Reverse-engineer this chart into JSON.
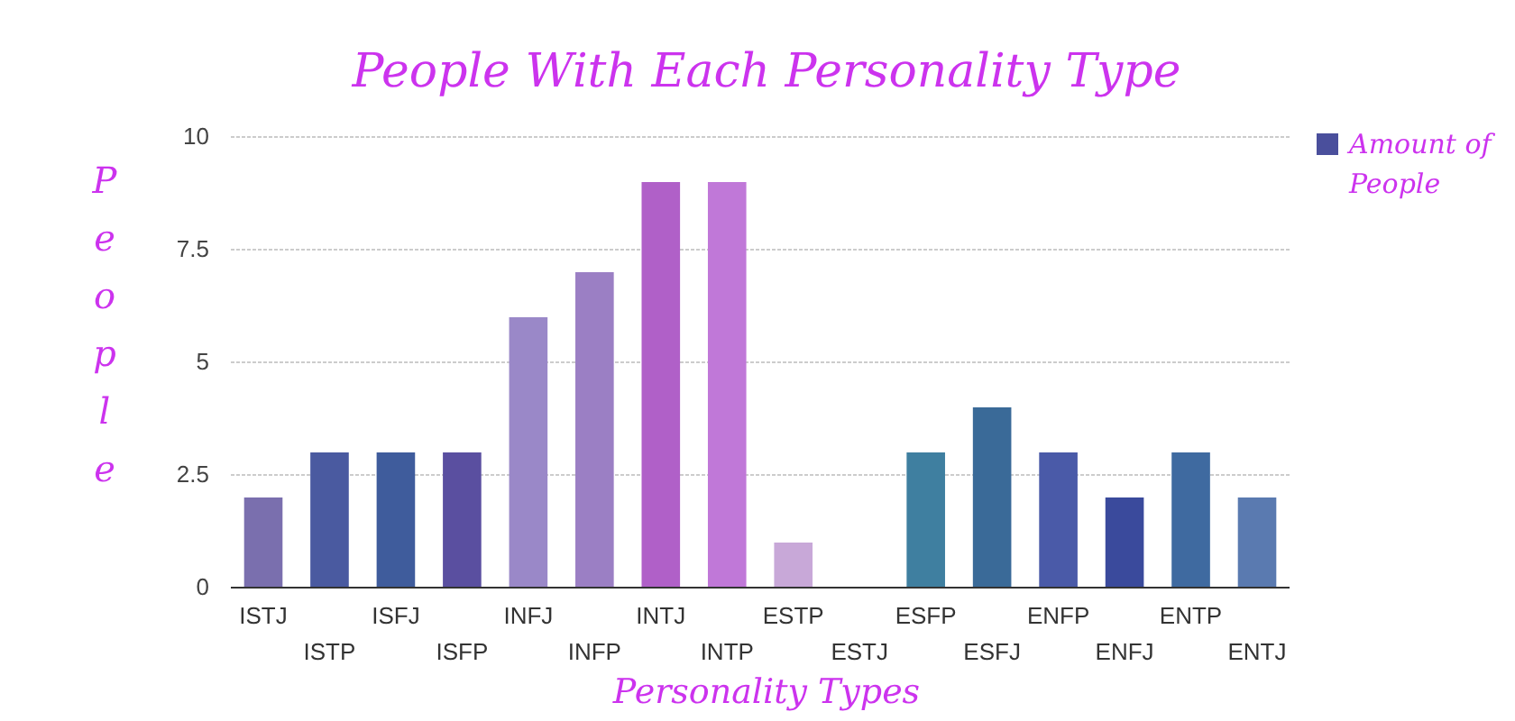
{
  "chart_data": {
    "type": "bar",
    "title": "People With Each Personality Type",
    "xlabel": "Personality Types",
    "ylabel": "People",
    "categories": [
      "ISTJ",
      "ISTP",
      "ISFJ",
      "ISFP",
      "INFJ",
      "INFP",
      "INTJ",
      "INTP",
      "ESTP",
      "ESTJ",
      "ESFP",
      "ESFJ",
      "ENFP",
      "ENFJ",
      "ENTP",
      "ENTJ"
    ],
    "series": [
      {
        "name": "Amount of People",
        "color": "#4a4f9c",
        "colors": [
          "#7a6fae",
          "#4a5aa0",
          "#3f5c9c",
          "#5a4fa0",
          "#9a88c8",
          "#9b7fc4",
          "#b060c8",
          "#c078d8",
          "#c8a8d8",
          "#7a6fae",
          "#3f7fa0",
          "#3a6a98",
          "#4a5aa8",
          "#3a4a9c",
          "#3f6aa0",
          "#5a7ab0"
        ],
        "values": [
          2,
          3,
          3,
          3,
          6,
          7,
          9,
          9,
          1,
          0,
          3,
          4,
          3,
          2,
          3,
          2
        ]
      }
    ],
    "ylim": [
      0,
      10
    ],
    "yticks": [
      0,
      2.5,
      5,
      7.5,
      10
    ],
    "grid": "y",
    "legend": "top right"
  }
}
